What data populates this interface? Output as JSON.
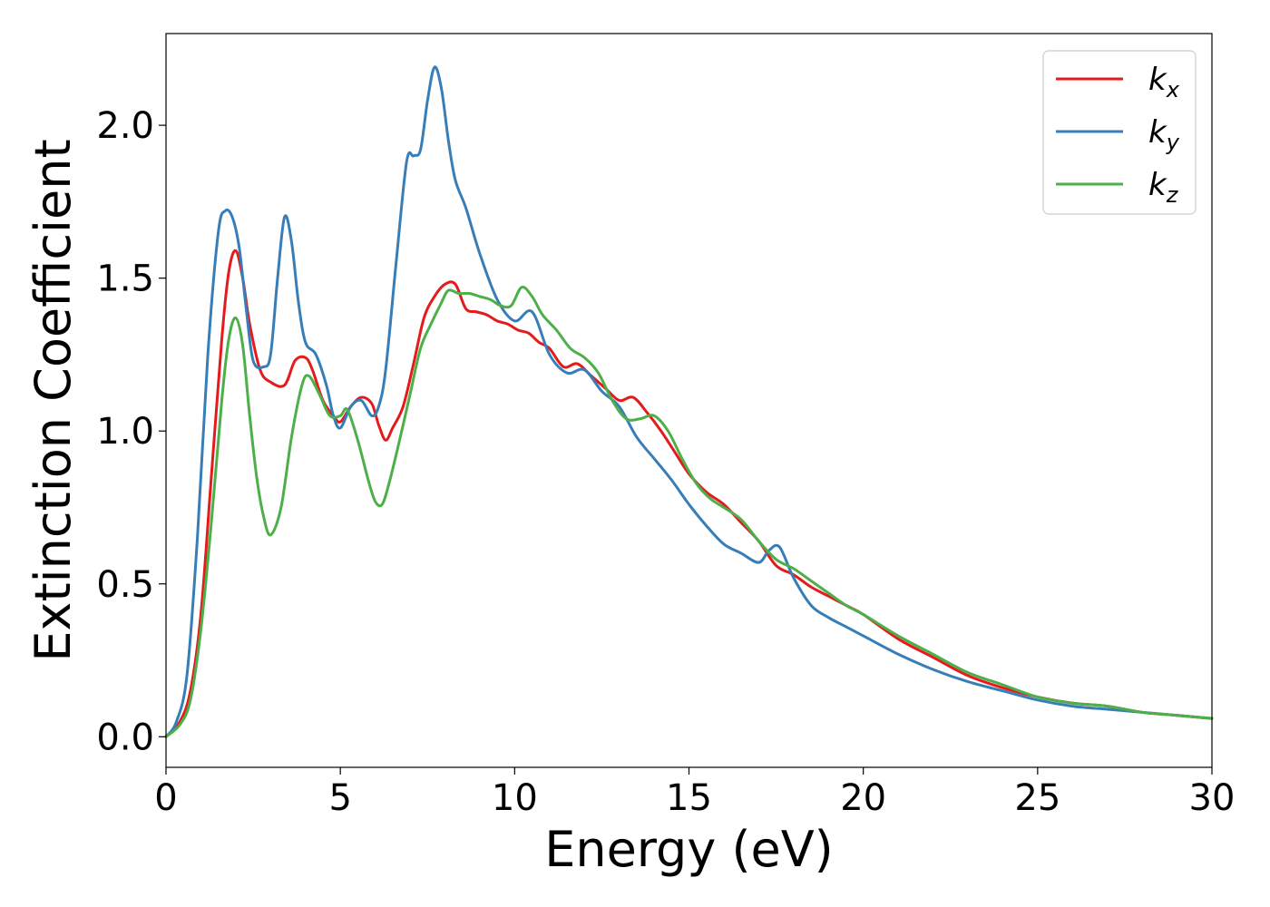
{
  "chart_data": {
    "type": "line",
    "xlabel": "Energy (eV)",
    "ylabel": "Extinction Coefficient",
    "xlim": [
      0,
      30
    ],
    "ylim": [
      -0.1,
      2.3
    ],
    "xticks": [
      0,
      5,
      10,
      15,
      20,
      25,
      30
    ],
    "xtick_labels": [
      "0",
      "5",
      "10",
      "15",
      "20",
      "25",
      "30"
    ],
    "yticks": [
      0.0,
      0.5,
      1.0,
      1.5,
      2.0
    ],
    "ytick_labels": [
      "0.0",
      "0.5",
      "1.0",
      "1.5",
      "2.0"
    ],
    "grid": false,
    "legend_position": "top-right",
    "series": [
      {
        "name": "k",
        "subscript": "x",
        "color": "#e41a1c",
        "x": [
          0,
          0.4,
          0.7,
          1.0,
          1.3,
          1.6,
          1.8,
          2.0,
          2.2,
          2.4,
          2.7,
          3.0,
          3.4,
          3.7,
          4.0,
          4.2,
          4.5,
          4.8,
          5.0,
          5.3,
          5.6,
          5.9,
          6.1,
          6.3,
          6.5,
          6.8,
          7.1,
          7.4,
          7.7,
          8.0,
          8.3,
          8.6,
          8.9,
          9.2,
          9.5,
          9.8,
          10.1,
          10.4,
          10.7,
          11.0,
          11.4,
          11.8,
          12.2,
          12.6,
          13.0,
          13.4,
          13.8,
          14.2,
          14.6,
          15.0,
          15.5,
          16.0,
          16.5,
          17.0,
          17.5,
          18.0,
          18.5,
          19.0,
          19.5,
          20.0,
          21.0,
          22.0,
          23.0,
          24.0,
          25.0,
          26.0,
          27.0,
          28.0,
          29.0,
          30.0
        ],
        "values": [
          0.0,
          0.05,
          0.15,
          0.4,
          0.85,
          1.3,
          1.52,
          1.59,
          1.5,
          1.35,
          1.2,
          1.16,
          1.15,
          1.23,
          1.24,
          1.2,
          1.1,
          1.05,
          1.03,
          1.08,
          1.11,
          1.09,
          1.02,
          0.97,
          1.01,
          1.08,
          1.22,
          1.37,
          1.44,
          1.48,
          1.48,
          1.4,
          1.39,
          1.38,
          1.36,
          1.35,
          1.33,
          1.32,
          1.29,
          1.27,
          1.21,
          1.22,
          1.18,
          1.14,
          1.1,
          1.11,
          1.06,
          1.0,
          0.93,
          0.86,
          0.8,
          0.76,
          0.7,
          0.64,
          0.56,
          0.53,
          0.49,
          0.46,
          0.43,
          0.4,
          0.32,
          0.26,
          0.2,
          0.16,
          0.13,
          0.11,
          0.1,
          0.08,
          0.07,
          0.06
        ]
      },
      {
        "name": "k",
        "subscript": "y",
        "color": "#377eb8",
        "x": [
          0,
          0.3,
          0.6,
          0.9,
          1.2,
          1.5,
          1.7,
          1.9,
          2.1,
          2.3,
          2.5,
          2.8,
          3.0,
          3.2,
          3.4,
          3.6,
          3.8,
          4.0,
          4.3,
          4.6,
          4.8,
          5.0,
          5.3,
          5.6,
          5.9,
          6.1,
          6.3,
          6.6,
          6.9,
          7.1,
          7.3,
          7.5,
          7.7,
          7.9,
          8.1,
          8.3,
          8.6,
          9.0,
          9.5,
          10.0,
          10.5,
          11.0,
          11.5,
          12.0,
          12.5,
          13.0,
          13.5,
          14.0,
          14.5,
          15.0,
          15.5,
          16.0,
          16.5,
          17.0,
          17.3,
          17.6,
          18.0,
          18.5,
          19.0,
          19.5,
          20.0,
          21.0,
          22.0,
          23.0,
          24.0,
          25.0,
          26.0,
          27.0,
          28.0,
          29.0,
          30.0
        ],
        "values": [
          0.0,
          0.05,
          0.2,
          0.65,
          1.25,
          1.65,
          1.72,
          1.7,
          1.6,
          1.4,
          1.23,
          1.21,
          1.25,
          1.5,
          1.7,
          1.62,
          1.42,
          1.29,
          1.25,
          1.15,
          1.05,
          1.01,
          1.08,
          1.1,
          1.05,
          1.08,
          1.2,
          1.55,
          1.88,
          1.9,
          1.92,
          2.08,
          2.19,
          2.12,
          1.95,
          1.82,
          1.73,
          1.58,
          1.43,
          1.36,
          1.39,
          1.25,
          1.19,
          1.2,
          1.13,
          1.08,
          0.98,
          0.91,
          0.84,
          0.76,
          0.69,
          0.63,
          0.6,
          0.57,
          0.61,
          0.62,
          0.52,
          0.43,
          0.39,
          0.36,
          0.33,
          0.27,
          0.22,
          0.18,
          0.15,
          0.12,
          0.1,
          0.09,
          0.08,
          0.07,
          0.06
        ]
      },
      {
        "name": "k",
        "subscript": "z",
        "color": "#4daf4a",
        "x": [
          0,
          0.4,
          0.7,
          1.0,
          1.3,
          1.6,
          1.8,
          2.0,
          2.2,
          2.4,
          2.6,
          2.8,
          3.0,
          3.3,
          3.6,
          3.9,
          4.1,
          4.4,
          4.7,
          5.0,
          5.2,
          5.5,
          5.8,
          6.0,
          6.2,
          6.4,
          6.7,
          7.0,
          7.3,
          7.6,
          7.9,
          8.1,
          8.4,
          8.7,
          9.0,
          9.3,
          9.6,
          9.9,
          10.2,
          10.5,
          10.8,
          11.2,
          11.6,
          12.0,
          12.4,
          12.8,
          13.2,
          13.6,
          14.0,
          14.4,
          14.8,
          15.2,
          15.6,
          16.0,
          16.5,
          17.0,
          17.5,
          18.0,
          18.5,
          19.0,
          19.5,
          20.0,
          21.0,
          22.0,
          23.0,
          24.0,
          25.0,
          26.0,
          27.0,
          28.0,
          29.0,
          30.0
        ],
        "values": [
          0.0,
          0.04,
          0.12,
          0.35,
          0.7,
          1.1,
          1.3,
          1.37,
          1.28,
          1.05,
          0.85,
          0.72,
          0.66,
          0.75,
          0.98,
          1.15,
          1.18,
          1.12,
          1.05,
          1.05,
          1.07,
          0.97,
          0.84,
          0.77,
          0.76,
          0.83,
          0.97,
          1.12,
          1.27,
          1.35,
          1.42,
          1.46,
          1.45,
          1.45,
          1.44,
          1.43,
          1.41,
          1.41,
          1.47,
          1.44,
          1.38,
          1.33,
          1.27,
          1.24,
          1.19,
          1.1,
          1.04,
          1.04,
          1.05,
          1.0,
          0.91,
          0.83,
          0.78,
          0.75,
          0.71,
          0.64,
          0.58,
          0.55,
          0.51,
          0.47,
          0.43,
          0.4,
          0.33,
          0.27,
          0.21,
          0.17,
          0.13,
          0.11,
          0.1,
          0.08,
          0.07,
          0.06
        ]
      }
    ]
  }
}
